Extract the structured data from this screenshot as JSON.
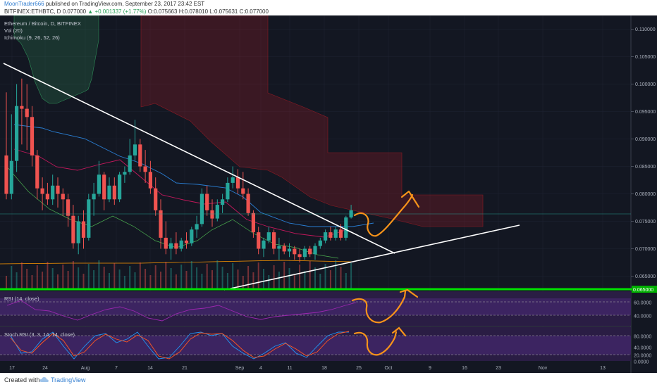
{
  "header": {
    "user": "MoonTrader666",
    "published": "published on TradingView.com, September 23, 2017 23:42 EST",
    "symbol": "BITFINEX:ETHBTC, D",
    "last": "0.077000",
    "change": "+0.001337 (+1.77%)",
    "open": "O:0.075663",
    "high": "H:0.078010",
    "low": "L:0.075631",
    "close": "C:0.077000"
  },
  "footer": {
    "created_with": "Created with",
    "brand": "TradingView"
  },
  "colors": {
    "up": "#26a69a",
    "down": "#ef5350",
    "bg": "#131722",
    "annotation": "#f7931a",
    "support": "#00ff00"
  },
  "chart_data": [
    {
      "type": "candlestick",
      "title": "Ethereum / Bitcoin, D, BITFINEX",
      "indicators": [
        "Vol (20)",
        "Ichimoku (9, 26, 52, 26)"
      ],
      "x_ticks": [
        "17",
        "24",
        "Aug",
        "7",
        "14",
        "21",
        "Sep",
        "4",
        "11",
        "18",
        "25",
        "Oct",
        "9",
        "16",
        "23",
        "Nov",
        "13"
      ],
      "y_ticks": [
        "0.110000",
        "0.105000",
        "0.100000",
        "0.095000",
        "0.090000",
        "0.085000",
        "0.080000",
        "0.075000",
        "0.070000",
        "0.065000"
      ],
      "price_label": "0.065000",
      "ylim": [
        0.0625,
        0.1125
      ],
      "candles": [
        [
          0.087,
          0.0985,
          0.079,
          0.08
        ],
        [
          0.08,
          0.0945,
          0.079,
          0.086
        ],
        [
          0.086,
          0.1,
          0.084,
          0.096
        ],
        [
          0.096,
          0.101,
          0.089,
          0.0955
        ],
        [
          0.0955,
          0.1,
          0.088,
          0.094
        ],
        [
          0.094,
          0.096,
          0.085,
          0.087
        ],
        [
          0.087,
          0.088,
          0.079,
          0.081
        ],
        [
          0.081,
          0.083,
          0.077,
          0.08
        ],
        [
          0.08,
          0.082,
          0.078,
          0.079
        ],
        [
          0.079,
          0.0835,
          0.078,
          0.0815
        ],
        [
          0.0815,
          0.083,
          0.0775,
          0.08
        ],
        [
          0.08,
          0.081,
          0.076,
          0.079
        ],
        [
          0.079,
          0.08,
          0.074,
          0.076
        ],
        [
          0.076,
          0.078,
          0.07,
          0.071
        ],
        [
          0.071,
          0.076,
          0.069,
          0.075
        ],
        [
          0.075,
          0.077,
          0.07,
          0.072
        ],
        [
          0.072,
          0.08,
          0.0715,
          0.079
        ],
        [
          0.079,
          0.082,
          0.076,
          0.08
        ],
        [
          0.08,
          0.086,
          0.0795,
          0.0835
        ],
        [
          0.0835,
          0.084,
          0.077,
          0.079
        ],
        [
          0.079,
          0.083,
          0.0785,
          0.0815
        ],
        [
          0.0815,
          0.083,
          0.078,
          0.079
        ],
        [
          0.079,
          0.084,
          0.0785,
          0.0835
        ],
        [
          0.0835,
          0.085,
          0.082,
          0.084
        ],
        [
          0.084,
          0.09,
          0.0835,
          0.087
        ],
        [
          0.087,
          0.0935,
          0.086,
          0.089
        ],
        [
          0.089,
          0.09,
          0.084,
          0.085
        ],
        [
          0.085,
          0.088,
          0.082,
          0.084
        ],
        [
          0.084,
          0.086,
          0.08,
          0.081
        ],
        [
          0.081,
          0.083,
          0.076,
          0.077
        ],
        [
          0.077,
          0.079,
          0.07,
          0.072
        ],
        [
          0.072,
          0.075,
          0.069,
          0.07
        ],
        [
          0.07,
          0.072,
          0.068,
          0.071
        ],
        [
          0.071,
          0.073,
          0.069,
          0.07
        ],
        [
          0.07,
          0.072,
          0.0695,
          0.0715
        ],
        [
          0.0715,
          0.073,
          0.07,
          0.071
        ],
        [
          0.071,
          0.074,
          0.0705,
          0.0735
        ],
        [
          0.0735,
          0.076,
          0.072,
          0.0745
        ],
        [
          0.0745,
          0.081,
          0.074,
          0.08
        ],
        [
          0.08,
          0.0815,
          0.076,
          0.077
        ],
        [
          0.077,
          0.079,
          0.074,
          0.0755
        ],
        [
          0.0755,
          0.079,
          0.075,
          0.078
        ],
        [
          0.078,
          0.08,
          0.0765,
          0.079
        ],
        [
          0.079,
          0.083,
          0.0785,
          0.082
        ],
        [
          0.082,
          0.085,
          0.081,
          0.083
        ],
        [
          0.083,
          0.0845,
          0.08,
          0.081
        ],
        [
          0.081,
          0.084,
          0.079,
          0.08
        ],
        [
          0.08,
          0.081,
          0.076,
          0.0765
        ],
        [
          0.0765,
          0.077,
          0.072,
          0.073
        ],
        [
          0.073,
          0.074,
          0.069,
          0.07
        ],
        [
          0.07,
          0.072,
          0.0685,
          0.0715
        ],
        [
          0.0715,
          0.074,
          0.071,
          0.073
        ],
        [
          0.073,
          0.0735,
          0.069,
          0.07
        ],
        [
          0.07,
          0.072,
          0.068,
          0.0705
        ],
        [
          0.0705,
          0.071,
          0.069,
          0.0695
        ],
        [
          0.0695,
          0.071,
          0.0685,
          0.07
        ],
        [
          0.07,
          0.0705,
          0.068,
          0.069
        ],
        [
          0.069,
          0.07,
          0.0675,
          0.0685
        ],
        [
          0.0685,
          0.0705,
          0.068,
          0.07
        ],
        [
          0.07,
          0.0705,
          0.0685,
          0.069
        ],
        [
          0.069,
          0.071,
          0.068,
          0.0705
        ],
        [
          0.0705,
          0.072,
          0.07,
          0.0715
        ],
        [
          0.0715,
          0.0735,
          0.071,
          0.073
        ],
        [
          0.073,
          0.074,
          0.0715,
          0.072
        ],
        [
          0.072,
          0.074,
          0.0715,
          0.0735
        ],
        [
          0.0735,
          0.0745,
          0.0715,
          0.072
        ],
        [
          0.072,
          0.076,
          0.0715,
          0.0757
        ],
        [
          0.0757,
          0.078,
          0.0755,
          0.077
        ]
      ]
    },
    {
      "type": "line",
      "title": "RSI (14, close)",
      "y_ticks": [
        "60.0000",
        "40.0000"
      ],
      "ylim": [
        30,
        75
      ]
    },
    {
      "type": "line",
      "title": "Stoch RSI (3, 3, 14, 14, close)",
      "y_ticks": [
        "80.0000",
        "40.0000",
        "20.0000",
        "0.0000"
      ],
      "ylim": [
        -5,
        100
      ]
    }
  ]
}
